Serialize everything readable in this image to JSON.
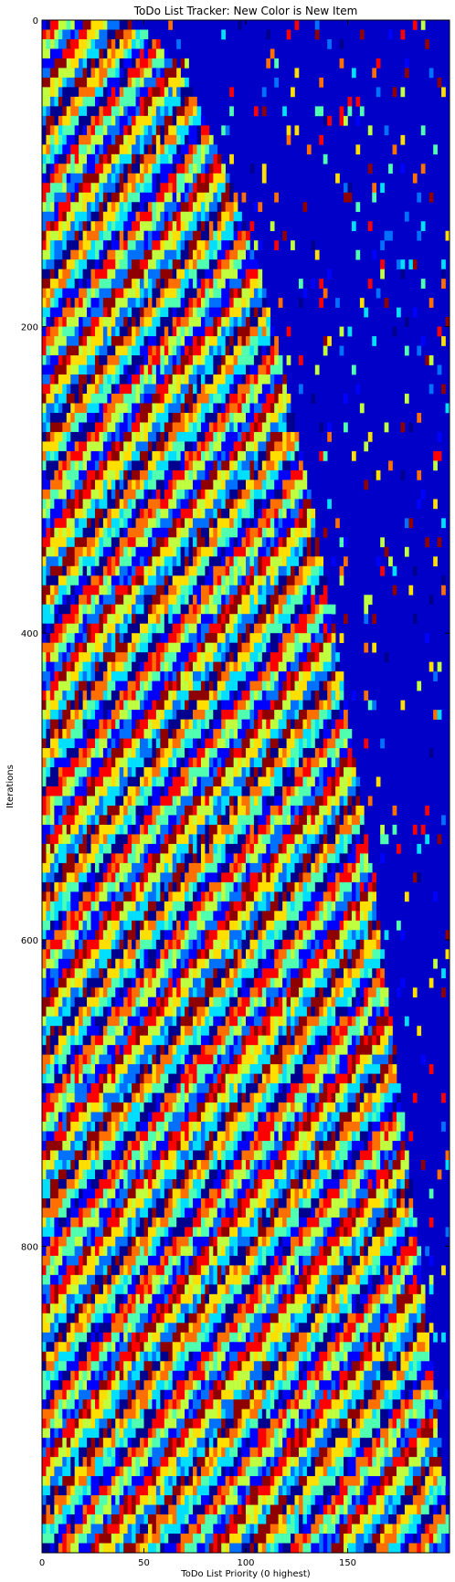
{
  "chart_data": {
    "type": "heatmap",
    "title": "ToDo List Tracker: New Color is New Item",
    "xlabel": "ToDo List Priority (0 highest)",
    "ylabel": "Iterations",
    "xlim": [
      0,
      200
    ],
    "ylim": [
      1000,
      0
    ],
    "x_ticks": [
      0,
      50,
      100,
      150
    ],
    "y_ticks": [
      0,
      200,
      400,
      600,
      800
    ],
    "colormap": "jet",
    "grid": false,
    "legend": "none",
    "description_of_values": "Each cell colored by the identity of the item occupying that priority slot at that iteration; diagonal streaks show items moving toward higher priority over iterations.",
    "colors": [
      "#00008f",
      "#0000ff",
      "#0070ff",
      "#00dfff",
      "#50ffaf",
      "#bfff40",
      "#ffdf00",
      "#ff7000",
      "#ff0000",
      "#8f0000"
    ]
  }
}
